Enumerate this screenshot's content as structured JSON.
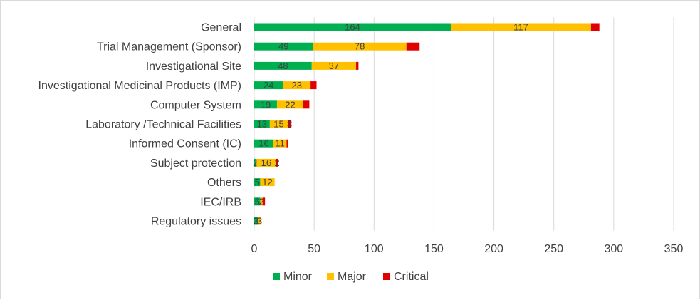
{
  "chart_data": {
    "type": "bar",
    "orientation": "horizontal",
    "stacked": true,
    "categories": [
      "General",
      "Trial Management (Sponsor)",
      "Investigational Site",
      "Investigational Medicinal Products (IMP)",
      "Computer System",
      "Laboratory /Technical Facilities",
      "Informed Consent (IC)",
      "Subject protection",
      "Others",
      "IEC/IRB",
      "Regulatory issues"
    ],
    "series": [
      {
        "name": "Minor",
        "color": "#00B050",
        "values": [
          164,
          49,
          48,
          24,
          19,
          13,
          16,
          2,
          5,
          5,
          3
        ],
        "labels": [
          "164",
          "49",
          "48",
          "24",
          "19",
          "13",
          "16",
          "2",
          "5",
          "5",
          "3"
        ]
      },
      {
        "name": "Major",
        "color": "#FFC000",
        "values": [
          117,
          78,
          37,
          23,
          22,
          15,
          11,
          16,
          12,
          2,
          3
        ],
        "labels": [
          "117",
          "78",
          "37",
          "23",
          "22",
          "15",
          "11",
          "16",
          "12",
          "2",
          "3"
        ]
      },
      {
        "name": "Critical",
        "color": "#E00000",
        "values": [
          7,
          11,
          2,
          5,
          5,
          3,
          1,
          2,
          0,
          2,
          0
        ],
        "labels": [
          "",
          "",
          "",
          "",
          "",
          "3",
          "",
          "2",
          "",
          "",
          ""
        ]
      }
    ],
    "xlim": [
      0,
      350
    ],
    "xticks": [
      "0",
      "50",
      "100",
      "150",
      "200",
      "250",
      "300",
      "350"
    ],
    "xtick_values": [
      0,
      50,
      100,
      150,
      200,
      250,
      300,
      350
    ],
    "grid": true,
    "legend_position": "bottom",
    "title": "",
    "xlabel": "",
    "ylabel": ""
  }
}
